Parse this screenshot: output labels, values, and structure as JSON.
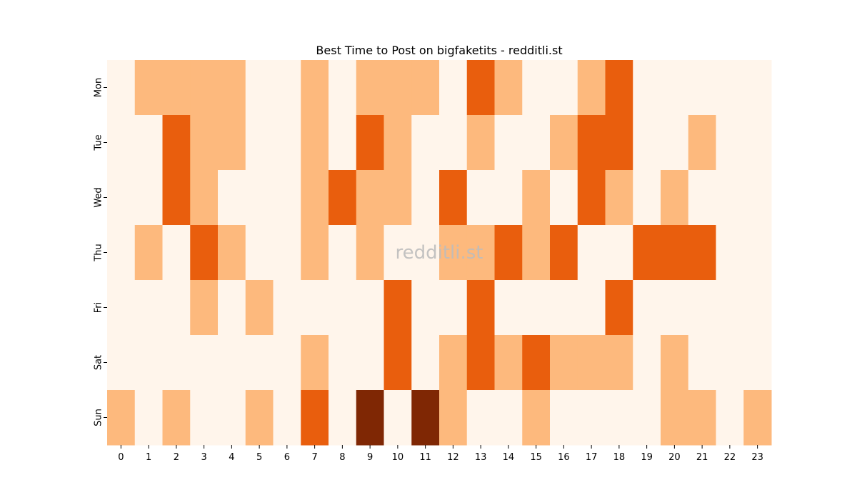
{
  "chart_data": {
    "type": "heatmap",
    "title": "Best Time to Post on bigfaketits - redditli.st",
    "watermark": "redditli.st",
    "xlabel": "",
    "ylabel": "",
    "x_categories": [
      "0",
      "1",
      "2",
      "3",
      "4",
      "5",
      "6",
      "7",
      "8",
      "9",
      "10",
      "11",
      "12",
      "13",
      "14",
      "15",
      "16",
      "17",
      "18",
      "19",
      "20",
      "21",
      "22",
      "23"
    ],
    "y_categories": [
      "Mon",
      "Tue",
      "Wed",
      "Thu",
      "Fri",
      "Sat",
      "Sun"
    ],
    "values": [
      [
        0,
        1,
        1,
        1,
        1,
        0,
        0,
        1,
        0,
        1,
        1,
        1,
        0,
        2,
        1,
        0,
        0,
        1,
        2,
        0,
        0,
        0,
        0,
        0
      ],
      [
        0,
        0,
        2,
        1,
        1,
        0,
        0,
        1,
        0,
        2,
        1,
        0,
        0,
        1,
        0,
        0,
        1,
        2,
        2,
        0,
        0,
        1,
        0,
        0
      ],
      [
        0,
        0,
        2,
        1,
        0,
        0,
        0,
        1,
        2,
        1,
        1,
        0,
        2,
        0,
        0,
        1,
        0,
        2,
        1,
        0,
        1,
        0,
        0,
        0
      ],
      [
        0,
        1,
        0,
        2,
        1,
        0,
        0,
        1,
        0,
        1,
        0,
        0,
        1,
        1,
        2,
        1,
        2,
        0,
        0,
        2,
        2,
        2,
        0,
        0
      ],
      [
        0,
        0,
        0,
        1,
        0,
        1,
        0,
        0,
        0,
        0,
        2,
        0,
        0,
        2,
        0,
        0,
        0,
        0,
        2,
        0,
        0,
        0,
        0,
        0
      ],
      [
        0,
        0,
        0,
        0,
        0,
        0,
        0,
        1,
        0,
        0,
        2,
        0,
        1,
        2,
        1,
        2,
        1,
        1,
        1,
        0,
        1,
        0,
        0,
        0
      ],
      [
        1,
        0,
        1,
        0,
        0,
        1,
        0,
        2,
        0,
        3,
        0,
        3,
        1,
        0,
        0,
        1,
        0,
        0,
        0,
        0,
        1,
        1,
        0,
        1
      ]
    ],
    "color_scale": {
      "0": "#fff5eb",
      "1": "#fdb97d",
      "2": "#e95e0d",
      "3": "#7f2704"
    },
    "grid": false,
    "legend": "none"
  }
}
